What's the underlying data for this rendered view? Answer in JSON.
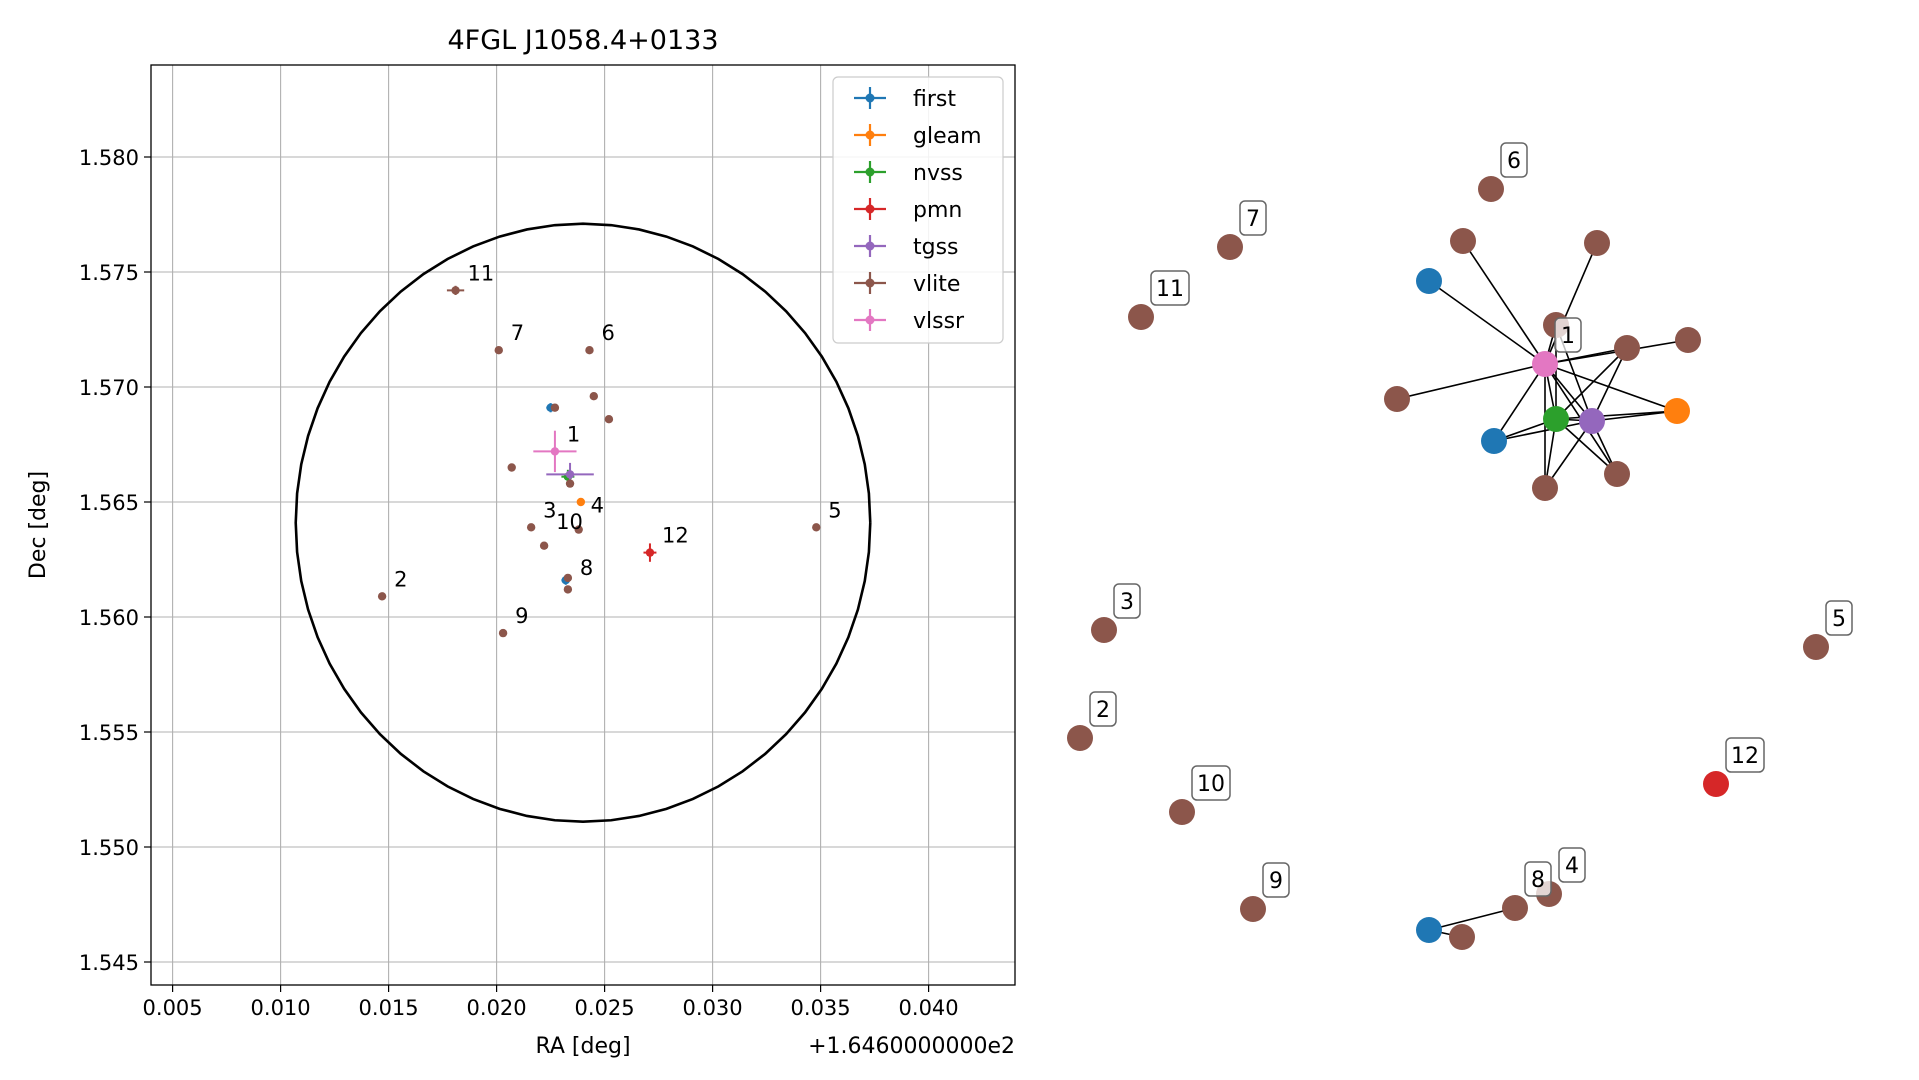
{
  "chart_data": [
    {
      "type": "scatter",
      "title": "4FGL J1058.4+0133",
      "xlabel": "RA [deg]",
      "ylabel": "Dec [deg]",
      "x_offset_label": "+1.6460000000e2",
      "xlim": [
        0.004,
        0.044
      ],
      "ylim": [
        1.544,
        1.584
      ],
      "x_ticks": [
        0.005,
        0.01,
        0.015,
        0.02,
        0.025,
        0.03,
        0.035,
        0.04
      ],
      "x_tick_labels": [
        "0.005",
        "0.010",
        "0.015",
        "0.020",
        "0.025",
        "0.030",
        "0.035",
        "0.040"
      ],
      "y_ticks": [
        1.545,
        1.55,
        1.555,
        1.56,
        1.565,
        1.57,
        1.575,
        1.58
      ],
      "y_tick_labels": [
        "1.545",
        "1.550",
        "1.555",
        "1.560",
        "1.565",
        "1.570",
        "1.575",
        "1.580"
      ],
      "grid": true,
      "legend_position": "top-right",
      "circle": {
        "center": [
          0.024,
          1.5641
        ],
        "radius_ra": 0.0133,
        "radius_dec": 0.013
      },
      "series": [
        {
          "name": "first",
          "color": "#1f77b4",
          "points": [
            {
              "x": 0.0225,
              "y": 1.5691,
              "ex": 0.0002,
              "ey": 0.0002
            },
            {
              "x": 0.0232,
              "y": 1.5616,
              "ex": 0.0002,
              "ey": 0.0002
            }
          ]
        },
        {
          "name": "gleam",
          "color": "#ff7f0e",
          "points": [
            {
              "x": 0.0239,
              "y": 1.565,
              "ex": 0.0,
              "ey": 0.0
            }
          ]
        },
        {
          "name": "nvss",
          "color": "#2ca02c",
          "points": [
            {
              "x": 0.0233,
              "y": 1.5661,
              "ex": 0.0003,
              "ey": 0.0003
            }
          ]
        },
        {
          "name": "pmn",
          "color": "#d62728",
          "points": [
            {
              "x": 0.0271,
              "y": 1.5628,
              "ex": 0.0003,
              "ey": 0.0004
            }
          ]
        },
        {
          "name": "tgss",
          "color": "#9467bd",
          "points": [
            {
              "x": 0.0234,
              "y": 1.5662,
              "ex": 0.0011,
              "ey": 0.0005
            }
          ]
        },
        {
          "name": "vlite",
          "color": "#8c564b",
          "points": [
            {
              "x": 0.0181,
              "y": 1.5742,
              "ex": 0.0004,
              "ey": 0.0002
            },
            {
              "x": 0.0201,
              "y": 1.5716,
              "ex": 0.0,
              "ey": 0.0
            },
            {
              "x": 0.0243,
              "y": 1.5716,
              "ex": 0.0,
              "ey": 0.0
            },
            {
              "x": 0.0227,
              "y": 1.5691,
              "ex": 0.0,
              "ey": 0.0
            },
            {
              "x": 0.0245,
              "y": 1.5696,
              "ex": 0.0,
              "ey": 0.0
            },
            {
              "x": 0.0252,
              "y": 1.5686,
              "ex": 0.0,
              "ey": 0.0
            },
            {
              "x": 0.0207,
              "y": 1.5665,
              "ex": 0.0,
              "ey": 0.0
            },
            {
              "x": 0.0234,
              "y": 1.5658,
              "ex": 0.0,
              "ey": 0.0
            },
            {
              "x": 0.0216,
              "y": 1.5639,
              "ex": 0.0,
              "ey": 0.0
            },
            {
              "x": 0.0238,
              "y": 1.5638,
              "ex": 0.0,
              "ey": 0.0
            },
            {
              "x": 0.0222,
              "y": 1.5631,
              "ex": 0.0,
              "ey": 0.0
            },
            {
              "x": 0.0233,
              "y": 1.5617,
              "ex": 0.0,
              "ey": 0.0
            },
            {
              "x": 0.0233,
              "y": 1.5612,
              "ex": 0.0,
              "ey": 0.0
            },
            {
              "x": 0.0147,
              "y": 1.5609,
              "ex": 0.0,
              "ey": 0.0
            },
            {
              "x": 0.0203,
              "y": 1.5593,
              "ex": 0.0,
              "ey": 0.0
            },
            {
              "x": 0.0348,
              "y": 1.5639,
              "ex": 0.0,
              "ey": 0.0
            }
          ]
        },
        {
          "name": "vlssr",
          "color": "#e377c2",
          "points": [
            {
              "x": 0.0227,
              "y": 1.5672,
              "ex": 0.001,
              "ey": 0.0009
            }
          ]
        }
      ],
      "annotations": [
        {
          "text": "11",
          "x": 0.0181,
          "y": 1.5742
        },
        {
          "text": "7",
          "x": 0.0201,
          "y": 1.5716
        },
        {
          "text": "6",
          "x": 0.0243,
          "y": 1.5716
        },
        {
          "text": "1",
          "x": 0.0227,
          "y": 1.5672
        },
        {
          "text": "5",
          "x": 0.0348,
          "y": 1.5639
        },
        {
          "text": "4",
          "x": 0.0238,
          "y": 1.5641
        },
        {
          "text": "3",
          "x": 0.0216,
          "y": 1.5639
        },
        {
          "text": "10",
          "x": 0.0222,
          "y": 1.5634
        },
        {
          "text": "12",
          "x": 0.0271,
          "y": 1.5628
        },
        {
          "text": "8",
          "x": 0.0233,
          "y": 1.5614
        },
        {
          "text": "2",
          "x": 0.0147,
          "y": 1.5609
        },
        {
          "text": "9",
          "x": 0.0203,
          "y": 1.5593
        }
      ]
    },
    {
      "type": "network",
      "node_label_style": "boxed",
      "nodes": [
        {
          "id": "n6",
          "color": "#8c564b",
          "label": "6"
        },
        {
          "id": "n7",
          "color": "#8c564b",
          "label": "7"
        },
        {
          "id": "n11",
          "color": "#8c564b",
          "label": "11"
        },
        {
          "id": "first_a",
          "color": "#1f77b4",
          "label": ""
        },
        {
          "id": "v_a",
          "color": "#8c564b",
          "label": ""
        },
        {
          "id": "v_b",
          "color": "#8c564b",
          "label": ""
        },
        {
          "id": "v_c",
          "color": "#8c564b",
          "label": ""
        },
        {
          "id": "vlssr",
          "color": "#e377c2",
          "label": "1"
        },
        {
          "id": "v_d",
          "color": "#8c564b",
          "label": ""
        },
        {
          "id": "v_e",
          "color": "#8c564b",
          "label": ""
        },
        {
          "id": "v_f",
          "color": "#8c564b",
          "label": ""
        },
        {
          "id": "gleam",
          "color": "#ff7f0e",
          "label": ""
        },
        {
          "id": "nvss",
          "color": "#2ca02c",
          "label": ""
        },
        {
          "id": "tgss",
          "color": "#9467bd",
          "label": ""
        },
        {
          "id": "first_b",
          "color": "#1f77b4",
          "label": ""
        },
        {
          "id": "v_g",
          "color": "#8c564b",
          "label": ""
        },
        {
          "id": "v_h",
          "color": "#8c564b",
          "label": ""
        },
        {
          "id": "n3",
          "color": "#8c564b",
          "label": "3"
        },
        {
          "id": "n2",
          "color": "#8c564b",
          "label": "2"
        },
        {
          "id": "n5",
          "color": "#8c564b",
          "label": "5"
        },
        {
          "id": "n12",
          "color": "#d62728",
          "label": "12"
        },
        {
          "id": "n10",
          "color": "#8c564b",
          "label": "10"
        },
        {
          "id": "n9",
          "color": "#8c564b",
          "label": "9"
        },
        {
          "id": "first_c",
          "color": "#1f77b4",
          "label": ""
        },
        {
          "id": "n8",
          "color": "#8c564b",
          "label": "8"
        },
        {
          "id": "n4",
          "color": "#8c564b",
          "label": "4"
        },
        {
          "id": "v_i",
          "color": "#8c564b",
          "label": ""
        }
      ],
      "edges": [
        [
          "vlssr",
          "first_a"
        ],
        [
          "vlssr",
          "v_a"
        ],
        [
          "vlssr",
          "v_b"
        ],
        [
          "vlssr",
          "v_c"
        ],
        [
          "vlssr",
          "v_d"
        ],
        [
          "vlssr",
          "v_e"
        ],
        [
          "vlssr",
          "v_f"
        ],
        [
          "vlssr",
          "nvss"
        ],
        [
          "vlssr",
          "tgss"
        ],
        [
          "vlssr",
          "gleam"
        ],
        [
          "vlssr",
          "first_b"
        ],
        [
          "vlssr",
          "v_g"
        ],
        [
          "vlssr",
          "v_h"
        ],
        [
          "nvss",
          "tgss"
        ],
        [
          "nvss",
          "gleam"
        ],
        [
          "tgss",
          "gleam"
        ],
        [
          "nvss",
          "v_d"
        ],
        [
          "tgss",
          "v_d"
        ],
        [
          "nvss",
          "v_g"
        ],
        [
          "tgss",
          "v_g"
        ],
        [
          "nvss",
          "v_h"
        ],
        [
          "tgss",
          "v_h"
        ],
        [
          "nvss",
          "first_b"
        ],
        [
          "tgss",
          "first_b"
        ],
        [
          "v_c",
          "tgss"
        ],
        [
          "v_c",
          "nvss"
        ],
        [
          "first_c",
          "n8"
        ],
        [
          "first_c",
          "v_i"
        ]
      ]
    }
  ]
}
